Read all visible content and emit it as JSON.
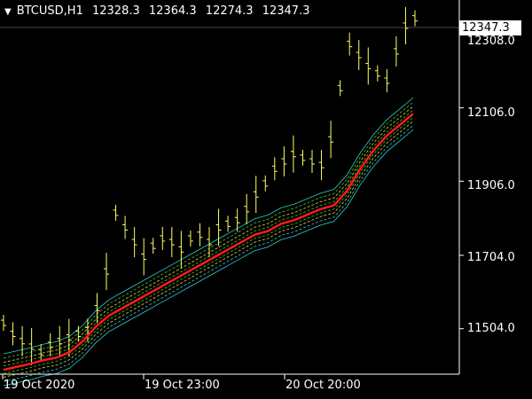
{
  "header": {
    "menu_icon": "triangle-down-icon",
    "symbol": "BTCUSD,H1",
    "open": "12328.3",
    "high": "12364.3",
    "low": "12274.3",
    "close": "12347.3"
  },
  "current_price": "12347.3",
  "colors": {
    "background": "#000000",
    "axis": "#ffffff",
    "candles": "#ffff66",
    "main_line": "#ff1a1a",
    "envelope_green": "#33cc33",
    "envelope_cyan": "#33cccc",
    "envelope_yellow": "#dddd33"
  },
  "chart_data": {
    "type": "line",
    "y_ticks": [
      "12308.0",
      "12106.0",
      "11906.0",
      "11704.0",
      "11504.0"
    ],
    "x_ticks": [
      "19 Oct 2020",
      "19 Oct 23:00",
      "20 Oct 20:00"
    ],
    "ylim": [
      11380,
      12400
    ],
    "main_series": [
      11392,
      11400,
      11408,
      11418,
      11425,
      11440,
      11470,
      11510,
      11540,
      11560,
      11580,
      11600,
      11620,
      11640,
      11660,
      11680,
      11700,
      11720,
      11740,
      11760,
      11770,
      11790,
      11800,
      11815,
      11830,
      11840,
      11880,
      11940,
      11990,
      12030,
      12060,
      12090
    ],
    "price_bars": [
      11520,
      11490,
      11470,
      11455,
      11440,
      11460,
      11470,
      11480,
      11490,
      11500,
      11560,
      11660,
      11820,
      11780,
      11740,
      11700,
      11730,
      11750,
      11740,
      11720,
      11750,
      11760,
      11740,
      11780,
      11790,
      11800,
      11830,
      11870,
      11900,
      11940,
      11960,
      11980,
      11970,
      11960,
      11950,
      12020,
      12160,
      12280,
      12250,
      12220,
      12200,
      12180,
      12260,
      12330,
      12350
    ]
  }
}
